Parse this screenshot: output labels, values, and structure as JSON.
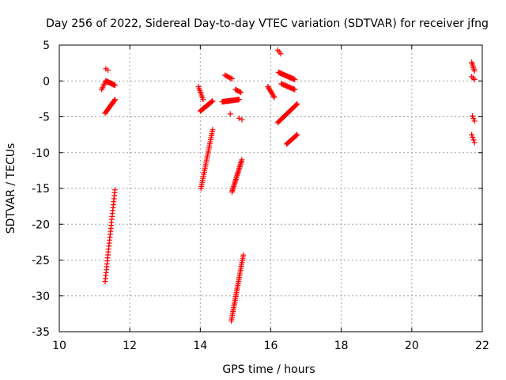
{
  "chart_data": {
    "type": "scatter",
    "title": "Day 256 of 2022, Sidereal Day-to-day VTEC variation (SDTVAR) for receiver jfng",
    "xlabel": "GPS time / hours",
    "ylabel": "SDTVAR / TECUs",
    "xlim": [
      10,
      22
    ],
    "ylim": [
      -35,
      5
    ],
    "xticks": [
      10,
      12,
      14,
      16,
      18,
      20,
      22
    ],
    "yticks": [
      5,
      0,
      -5,
      -10,
      -15,
      -20,
      -25,
      -30,
      -35
    ],
    "grid": true,
    "marker": "+",
    "marker_color": "#ff0000",
    "segments": [
      {
        "x0": 11.2,
        "x1": 11.3,
        "y0": -1.2,
        "y1": -0.2,
        "n": 5
      },
      {
        "x0": 11.32,
        "x1": 11.38,
        "y0": 1.7,
        "y1": 1.5,
        "n": 2
      },
      {
        "x0": 11.32,
        "x1": 11.58,
        "y0": 0.0,
        "y1": -0.6,
        "n": 14
      },
      {
        "x0": 11.3,
        "x1": 11.58,
        "y0": -4.5,
        "y1": -2.6,
        "n": 16
      },
      {
        "x0": 11.3,
        "x1": 11.58,
        "y0": -28.0,
        "y1": -15.2,
        "n": 32
      },
      {
        "x0": 13.95,
        "x1": 14.08,
        "y0": -0.8,
        "y1": -2.6,
        "n": 8
      },
      {
        "x0": 14.0,
        "x1": 14.35,
        "y0": -4.2,
        "y1": -2.8,
        "n": 20
      },
      {
        "x0": 14.02,
        "x1": 14.35,
        "y0": -15.0,
        "y1": -6.8,
        "n": 30
      },
      {
        "x0": 14.7,
        "x1": 14.9,
        "y0": 0.8,
        "y1": 0.3,
        "n": 7
      },
      {
        "x0": 14.62,
        "x1": 15.1,
        "y0": -2.9,
        "y1": -2.6,
        "n": 22
      },
      {
        "x0": 14.85,
        "x1": 14.9,
        "y0": -4.6,
        "y1": -4.6,
        "n": 1
      },
      {
        "x0": 15.0,
        "x1": 15.15,
        "y0": -1.2,
        "y1": -1.6,
        "n": 6
      },
      {
        "x0": 15.1,
        "x1": 15.18,
        "y0": -5.2,
        "y1": -5.4,
        "n": 2
      },
      {
        "x0": 14.9,
        "x1": 15.18,
        "y0": -15.5,
        "y1": -11.0,
        "n": 24
      },
      {
        "x0": 14.88,
        "x1": 15.22,
        "y0": -33.5,
        "y1": -24.3,
        "n": 36
      },
      {
        "x0": 15.92,
        "x1": 16.1,
        "y0": -0.8,
        "y1": -2.3,
        "n": 10
      },
      {
        "x0": 16.2,
        "x1": 16.28,
        "y0": 4.3,
        "y1": 3.8,
        "n": 3
      },
      {
        "x0": 16.22,
        "x1": 16.68,
        "y0": 1.2,
        "y1": 0.2,
        "n": 20
      },
      {
        "x0": 16.3,
        "x1": 16.68,
        "y0": -0.4,
        "y1": -1.2,
        "n": 14
      },
      {
        "x0": 16.2,
        "x1": 16.75,
        "y0": -5.8,
        "y1": -3.2,
        "n": 28
      },
      {
        "x0": 16.45,
        "x1": 16.75,
        "y0": -8.8,
        "y1": -7.5,
        "n": 14
      },
      {
        "x0": 21.7,
        "x1": 21.78,
        "y0": 2.6,
        "y1": 1.4,
        "n": 6
      },
      {
        "x0": 21.7,
        "x1": 21.78,
        "y0": 0.6,
        "y1": 0.2,
        "n": 3
      },
      {
        "x0": 21.72,
        "x1": 21.78,
        "y0": -4.9,
        "y1": -5.6,
        "n": 3
      },
      {
        "x0": 21.7,
        "x1": 21.78,
        "y0": -7.5,
        "y1": -8.6,
        "n": 4
      }
    ]
  }
}
